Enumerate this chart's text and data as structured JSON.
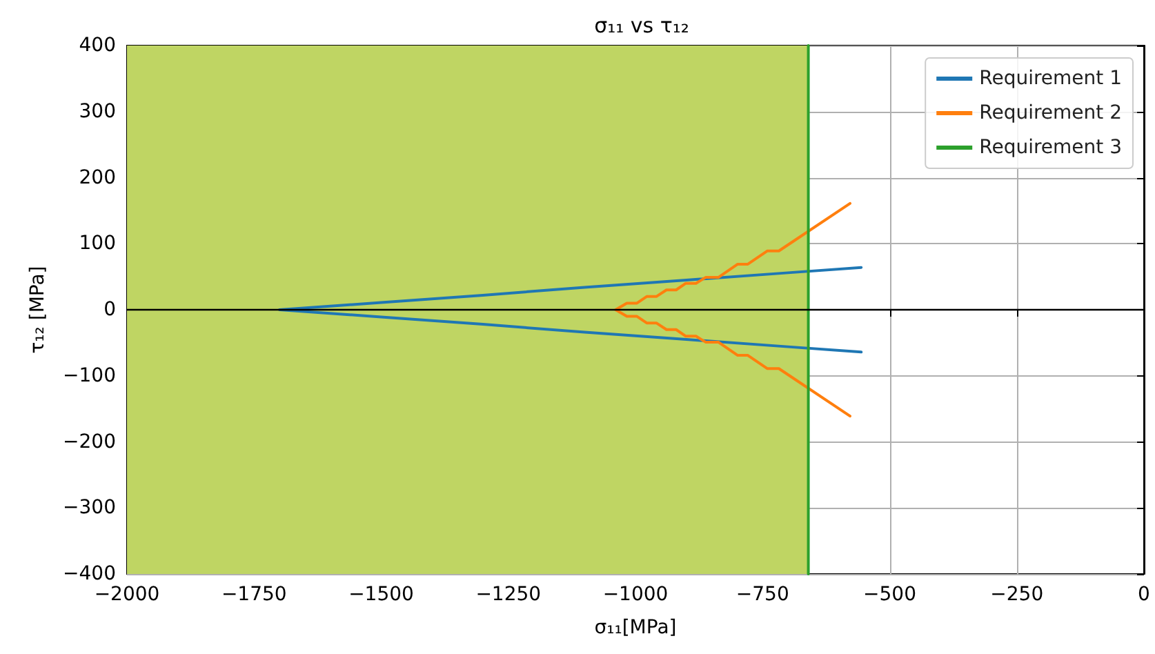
{
  "chart_data": {
    "type": "line",
    "title": "σ₁₁ vs τ₁₂",
    "xlabel": "σ₁₁[MPa]",
    "ylabel": "τ₁₂ [MPa]",
    "xlim": [
      -2000,
      0
    ],
    "xticks": [
      -2000,
      -1750,
      -1500,
      -1250,
      -1000,
      -750,
      -500,
      -250,
      0
    ],
    "ylim": [
      -400,
      400
    ],
    "yticks": [
      -400,
      -300,
      -200,
      -100,
      0,
      100,
      200,
      300,
      400
    ],
    "series": [
      {
        "name": "Requirement 1",
        "color": "#1f77b4",
        "x": [
          -556,
          -700,
          -900,
          -1100,
          -1300,
          -1500,
          -1700,
          -1500,
          -1300,
          -1100,
          -900,
          -700,
          -556
        ],
        "values": [
          64,
          56,
          45,
          34,
          22,
          11,
          0,
          -11,
          -22,
          -34,
          -45,
          -56,
          -64
        ]
      },
      {
        "name": "Requirement 2",
        "color": "#ff7f0e",
        "x": [
          -578,
          -718,
          -741,
          -779,
          -799,
          -837,
          -862,
          -881,
          -901,
          -920,
          -939,
          -959,
          -978,
          -997,
          -1017,
          -1039,
          -1017,
          -997,
          -978,
          -959,
          -939,
          -920,
          -901,
          -881,
          -862,
          -837,
          -799,
          -779,
          -741,
          -718,
          -578
        ],
        "values": [
          161,
          89,
          89,
          69,
          69,
          49,
          49,
          40,
          40,
          30,
          30,
          20,
          20,
          10,
          10,
          0,
          -10,
          -10,
          -20,
          -20,
          -30,
          -30,
          -40,
          -40,
          -49,
          -49,
          -69,
          -69,
          -89,
          -89,
          -161
        ]
      },
      {
        "name": "Requirement 3",
        "color": "#2ca02c",
        "x": [
          -660,
          -660
        ],
        "values": [
          -400,
          400
        ]
      }
    ],
    "bands": [
      {
        "axis": "x",
        "from": -2000,
        "to": -660,
        "color": "#bfd563"
      }
    ],
    "ref_lines": [
      {
        "axis": "y",
        "value": 0,
        "color": "#000000"
      }
    ],
    "grid": true,
    "legend": "top right",
    "line_style": "solid",
    "marker": "none"
  }
}
